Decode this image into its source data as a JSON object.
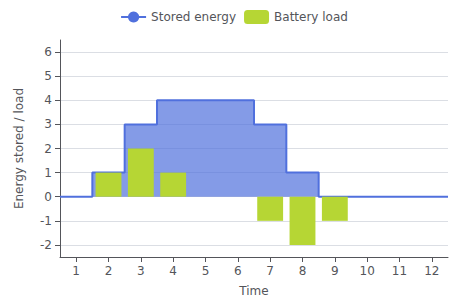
{
  "chart_data": {
    "type": "combo",
    "xlabel": "Time",
    "ylabel": "Energy stored / load",
    "xlim": [
      0.5,
      12.5
    ],
    "ylim": [
      -2.5,
      6.5
    ],
    "xticks": [
      1,
      2,
      3,
      4,
      5,
      6,
      7,
      8,
      9,
      10,
      11,
      12
    ],
    "yticks": [
      -2,
      -1,
      0,
      1,
      2,
      3,
      4,
      5,
      6
    ],
    "grid": true,
    "legend": "top",
    "series": [
      {
        "name": "Stored energy",
        "type": "area",
        "x": [
          0.5,
          1.5,
          1.5,
          2.5,
          2.5,
          3.5,
          3.5,
          6.5,
          6.5,
          7.5,
          7.5,
          8.5,
          8.5,
          12.5
        ],
        "values": [
          0,
          0,
          1,
          1,
          3,
          3,
          4,
          4,
          3,
          3,
          1,
          1,
          0,
          0
        ]
      },
      {
        "name": "Battery load",
        "type": "bar",
        "x": [
          2,
          3,
          4,
          7,
          8,
          9
        ],
        "values": [
          1,
          2,
          1,
          -1,
          -2,
          -1
        ]
      }
    ]
  }
}
